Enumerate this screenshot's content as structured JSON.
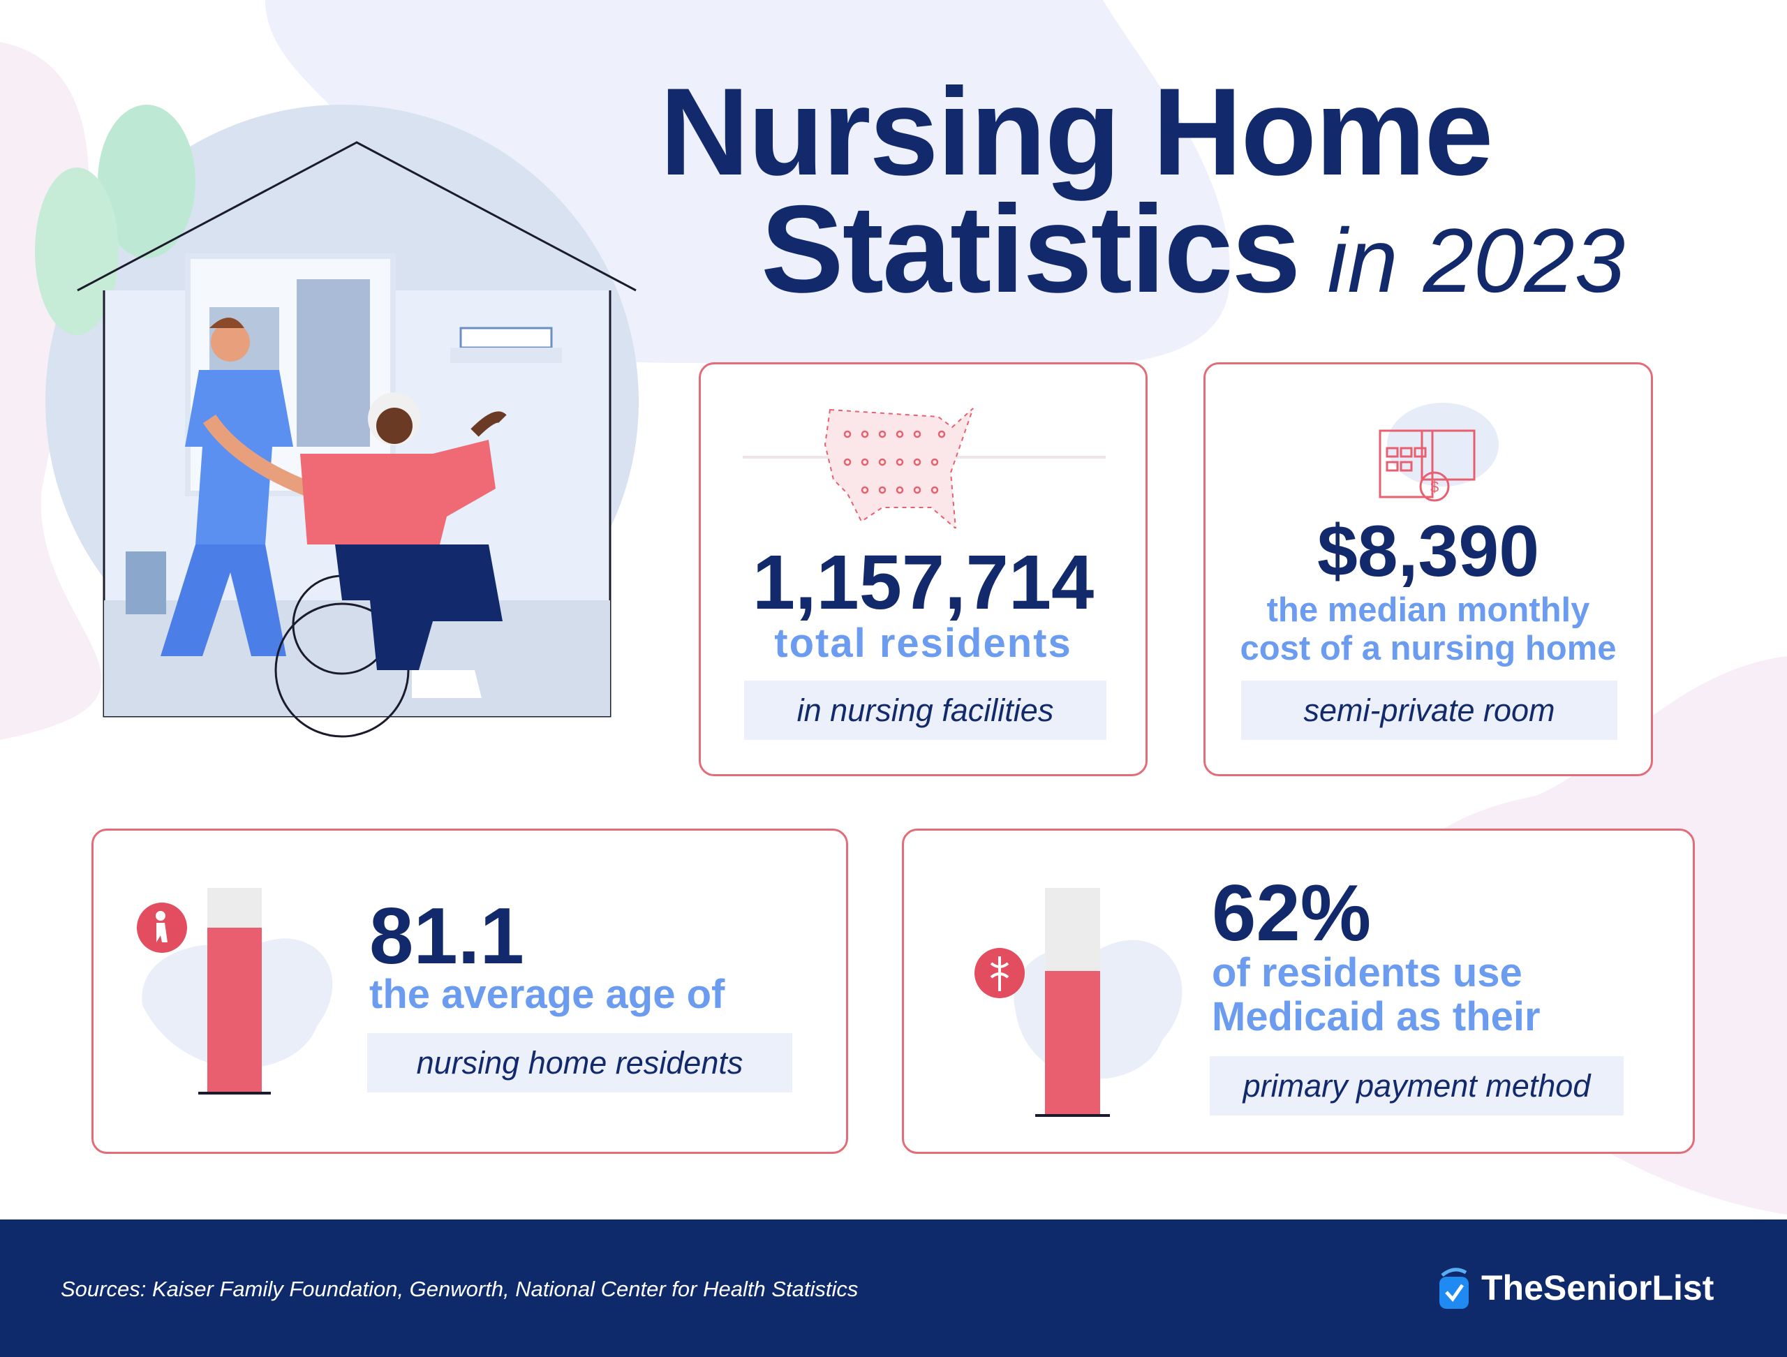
{
  "title": {
    "line1": "Nursing Home",
    "line2": "Statistics",
    "year": "in 2023"
  },
  "cards": [
    {
      "value": "1,157,714",
      "label": "total residents",
      "note": "in nursing facilities",
      "icon": "us-map-people-icon"
    },
    {
      "value": "$8,390",
      "label_lines": [
        "the median monthly",
        "cost of a nursing home"
      ],
      "note": "semi-private room",
      "icon": "bed-calendar-dollar-icon"
    },
    {
      "value": "81.1",
      "label": "the average age of",
      "note": "nursing home residents",
      "icon": "elderly-person-icon",
      "fill_fraction": 0.81
    },
    {
      "value": "62%",
      "label_lines": [
        "of residents use",
        "Medicaid as their"
      ],
      "note": "primary payment method",
      "icon": "caduceus-icon",
      "fill_fraction": 0.62
    }
  ],
  "footer": {
    "sources": "Sources: Kaiser Family Foundation, Genworth, National Center for Health Statistics",
    "brand": "TheSeniorList"
  },
  "colors": {
    "navy": "#12296b",
    "blue": "#6b9cf0",
    "pink": "#e8606f",
    "box": "#ebf0fb"
  }
}
